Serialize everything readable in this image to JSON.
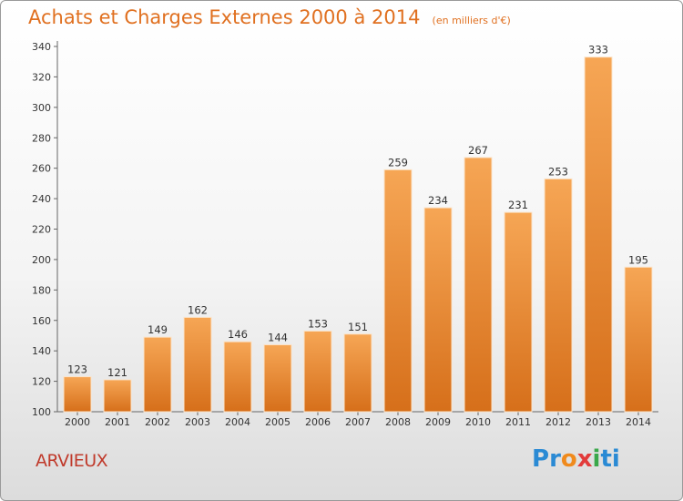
{
  "title": "Achats et Charges Externes 2000 à 2014",
  "unit": "(en milliers d'€)",
  "commune": "ARVIEUX",
  "logo_letters": [
    "P",
    "r",
    "o",
    "x",
    "i",
    "ti"
  ],
  "colors": {
    "title": "#e07020",
    "bar_light": "#f6a655",
    "bar_dark": "#d66f1a",
    "commune": "#c03a2b"
  },
  "chart_data": {
    "type": "bar",
    "title": "Achats et Charges Externes 2000 à 2014",
    "subtitle": "(en milliers d'€)",
    "categories": [
      "2000",
      "2001",
      "2002",
      "2003",
      "2004",
      "2005",
      "2006",
      "2007",
      "2008",
      "2009",
      "2010",
      "2011",
      "2012",
      "2013",
      "2014"
    ],
    "values": [
      123,
      121,
      149,
      162,
      146,
      144,
      153,
      151,
      259,
      234,
      267,
      231,
      253,
      333,
      195
    ],
    "ylim": [
      100,
      340
    ],
    "yticks": [
      100,
      120,
      140,
      160,
      180,
      200,
      220,
      240,
      260,
      280,
      300,
      320,
      340
    ],
    "grid": false,
    "data_labels": true
  }
}
